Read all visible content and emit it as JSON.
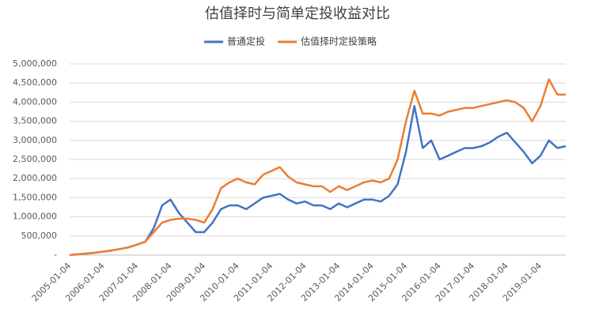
{
  "chart_data": {
    "type": "line",
    "title": "估值择时与简单定投收益对比",
    "categories": [
      "2005-01-04",
      null,
      null,
      null,
      "2006-01-04",
      null,
      null,
      null,
      "2007-01-04",
      null,
      null,
      null,
      "2008-01-04",
      null,
      null,
      null,
      "2009-01-04",
      null,
      null,
      null,
      "2010-01-04",
      null,
      null,
      null,
      "2011-01-04",
      null,
      null,
      null,
      "2012-01-04",
      null,
      null,
      null,
      "2013-01-04",
      null,
      null,
      null,
      "2014-01-04",
      null,
      null,
      null,
      "2015-01-04",
      null,
      null,
      null,
      "2016-01-04",
      null,
      null,
      null,
      "2017-01-04",
      null,
      null,
      null,
      "2018-01-04",
      null,
      null,
      null,
      "2019-01-04",
      null,
      null,
      null
    ],
    "series": [
      {
        "name": "普通定投",
        "color": "#4472c4",
        "values": [
          0,
          20000,
          40000,
          60000,
          90000,
          120000,
          160000,
          200000,
          270000,
          350000,
          700000,
          1300000,
          1450000,
          1100000,
          850000,
          600000,
          600000,
          850000,
          1200000,
          1300000,
          1300000,
          1200000,
          1350000,
          1500000,
          1550000,
          1600000,
          1450000,
          1350000,
          1400000,
          1300000,
          1300000,
          1200000,
          1350000,
          1250000,
          1350000,
          1450000,
          1450000,
          1400000,
          1550000,
          1850000,
          2700000,
          3900000,
          2800000,
          3000000,
          2500000,
          2600000,
          2700000,
          2800000,
          2800000,
          2850000,
          2950000,
          3100000,
          3200000,
          2950000,
          2700000,
          2400000,
          2600000,
          3000000,
          2800000,
          2850000
        ]
      },
      {
        "name": "估值择时定投策略",
        "color": "#ed7d31",
        "values": [
          0,
          20000,
          40000,
          60000,
          90000,
          120000,
          160000,
          200000,
          270000,
          350000,
          600000,
          850000,
          920000,
          950000,
          950000,
          920000,
          850000,
          1200000,
          1750000,
          1900000,
          2000000,
          1900000,
          1850000,
          2100000,
          2200000,
          2300000,
          2050000,
          1900000,
          1850000,
          1800000,
          1800000,
          1650000,
          1800000,
          1700000,
          1800000,
          1900000,
          1950000,
          1900000,
          2000000,
          2500000,
          3500000,
          4300000,
          3700000,
          3700000,
          3650000,
          3750000,
          3800000,
          3850000,
          3850000,
          3900000,
          3950000,
          4000000,
          4050000,
          4000000,
          3850000,
          3500000,
          3900000,
          4600000,
          4200000,
          4200000
        ]
      }
    ],
    "ylim": [
      0,
      5000000
    ],
    "yticks": [
      {
        "value": 0,
        "label": "-"
      },
      {
        "value": 500000,
        "label": "500,000"
      },
      {
        "value": 1000000,
        "label": "1,000,000"
      },
      {
        "value": 1500000,
        "label": "1,500,000"
      },
      {
        "value": 2000000,
        "label": "2,000,000"
      },
      {
        "value": 2500000,
        "label": "2,500,000"
      },
      {
        "value": 3000000,
        "label": "3,000,000"
      },
      {
        "value": 3500000,
        "label": "3,500,000"
      },
      {
        "value": 4000000,
        "label": "4,000,000"
      },
      {
        "value": 4500000,
        "label": "4,500,000"
      },
      {
        "value": 5000000,
        "label": "5,000,000"
      }
    ],
    "grid": true,
    "legend": "top"
  }
}
